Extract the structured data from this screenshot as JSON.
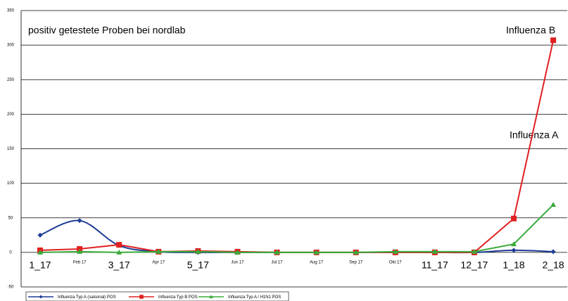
{
  "chart_data": {
    "type": "line",
    "title": "positiv getestete Proben bei nordlab",
    "annotations": [
      "Influenza B",
      "Influenza A"
    ],
    "categories": [
      "1_17",
      "Feb 17",
      "3_17",
      "Apr 17",
      "5_17",
      "Jun 17",
      "Jul 17",
      "Aug 17",
      "Sep 17",
      "Okt 17",
      "11_17",
      "12_17",
      "1_18",
      "2_18"
    ],
    "series": [
      {
        "name": "Influenza Typ A (saisonal) POS",
        "color": "#1f3c96",
        "marker": "diamond",
        "smooth": true,
        "values": [
          25,
          46,
          10,
          1,
          0,
          0,
          0,
          0,
          0,
          0,
          0,
          0,
          3,
          1
        ]
      },
      {
        "name": "Influenza Typ B POS",
        "color": "#e02020",
        "marker": "square",
        "smooth": false,
        "values": [
          3,
          5,
          11,
          1,
          2,
          1,
          0,
          0,
          0,
          0,
          0,
          0,
          49,
          307
        ]
      },
      {
        "name": "Influenza Typ A / H1N1 POS",
        "color": "#3aaa3a",
        "marker": "triangle",
        "smooth": false,
        "values": [
          0,
          1,
          0,
          1,
          1,
          0,
          0,
          0,
          0,
          1,
          1,
          1,
          12,
          69
        ]
      }
    ],
    "ylim": [
      -50,
      350
    ],
    "yticks": [
      -50,
      0,
      50,
      100,
      150,
      200,
      250,
      300,
      350
    ],
    "grid": true,
    "legend": "bottom"
  }
}
